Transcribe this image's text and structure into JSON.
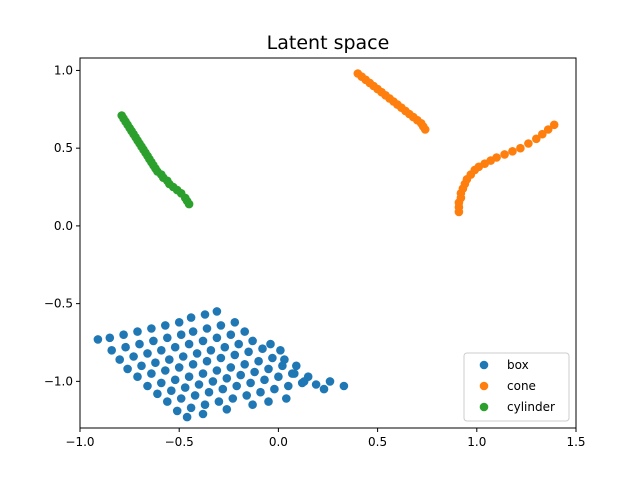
{
  "chart_data": {
    "type": "scatter",
    "title": "Latent space",
    "xlabel": "",
    "ylabel": "",
    "xlim": [
      -1.0,
      1.5
    ],
    "ylim": [
      -1.3,
      1.08
    ],
    "xticks": [
      -1.0,
      -0.5,
      0.0,
      0.5,
      1.0,
      1.5
    ],
    "xtick_labels": [
      "−1.0",
      "−0.5",
      "0.0",
      "0.5",
      "1.0",
      "1.5"
    ],
    "yticks": [
      -1.0,
      -0.5,
      0.0,
      0.5,
      1.0
    ],
    "ytick_labels": [
      "−1.0",
      "−0.5",
      "0.0",
      "0.5",
      "1.0"
    ],
    "grid": false,
    "legend_position": "lower-right",
    "series": [
      {
        "name": "box",
        "color": "#1f77b4",
        "points": [
          [
            -0.91,
            -0.73
          ],
          [
            -0.85,
            -0.72
          ],
          [
            -0.78,
            -0.7
          ],
          [
            -0.71,
            -0.68
          ],
          [
            -0.64,
            -0.66
          ],
          [
            -0.57,
            -0.64
          ],
          [
            -0.5,
            -0.62
          ],
          [
            -0.44,
            -0.59
          ],
          [
            -0.37,
            -0.57
          ],
          [
            -0.31,
            -0.55
          ],
          [
            -0.84,
            -0.8
          ],
          [
            -0.77,
            -0.78
          ],
          [
            -0.7,
            -0.76
          ],
          [
            -0.63,
            -0.74
          ],
          [
            -0.56,
            -0.72
          ],
          [
            -0.49,
            -0.7
          ],
          [
            -0.43,
            -0.68
          ],
          [
            -0.36,
            -0.66
          ],
          [
            -0.29,
            -0.64
          ],
          [
            -0.22,
            -0.62
          ],
          [
            -0.8,
            -0.86
          ],
          [
            -0.73,
            -0.84
          ],
          [
            -0.66,
            -0.82
          ],
          [
            -0.59,
            -0.8
          ],
          [
            -0.52,
            -0.78
          ],
          [
            -0.45,
            -0.76
          ],
          [
            -0.38,
            -0.74
          ],
          [
            -0.31,
            -0.72
          ],
          [
            -0.24,
            -0.7
          ],
          [
            -0.17,
            -0.68
          ],
          [
            -0.76,
            -0.92
          ],
          [
            -0.69,
            -0.9
          ],
          [
            -0.62,
            -0.88
          ],
          [
            -0.55,
            -0.86
          ],
          [
            -0.48,
            -0.84
          ],
          [
            -0.41,
            -0.82
          ],
          [
            -0.34,
            -0.8
          ],
          [
            -0.27,
            -0.78
          ],
          [
            -0.2,
            -0.76
          ],
          [
            -0.13,
            -0.74
          ],
          [
            -0.04,
            -0.76
          ],
          [
            0.01,
            -0.8
          ],
          [
            -0.71,
            -0.97
          ],
          [
            -0.64,
            -0.95
          ],
          [
            -0.57,
            -0.93
          ],
          [
            -0.5,
            -0.91
          ],
          [
            -0.43,
            -0.89
          ],
          [
            -0.36,
            -0.87
          ],
          [
            -0.29,
            -0.85
          ],
          [
            -0.22,
            -0.83
          ],
          [
            -0.15,
            -0.81
          ],
          [
            -0.08,
            -0.79
          ],
          [
            0.03,
            -0.86
          ],
          [
            0.09,
            -0.9
          ],
          [
            -0.66,
            -1.03
          ],
          [
            -0.59,
            -1.01
          ],
          [
            -0.52,
            -0.99
          ],
          [
            -0.45,
            -0.97
          ],
          [
            -0.38,
            -0.95
          ],
          [
            -0.31,
            -0.93
          ],
          [
            -0.24,
            -0.91
          ],
          [
            -0.17,
            -0.89
          ],
          [
            -0.1,
            -0.87
          ],
          [
            -0.03,
            -0.85
          ],
          [
            0.08,
            -0.95
          ],
          [
            0.15,
            -0.97
          ],
          [
            -0.61,
            -1.08
          ],
          [
            -0.54,
            -1.06
          ],
          [
            -0.47,
            -1.04
          ],
          [
            -0.4,
            -1.02
          ],
          [
            -0.33,
            -1.0
          ],
          [
            -0.26,
            -0.98
          ],
          [
            -0.19,
            -0.96
          ],
          [
            -0.12,
            -0.94
          ],
          [
            -0.05,
            -0.92
          ],
          [
            0.02,
            -0.9
          ],
          [
            0.13,
            -1.0
          ],
          [
            0.19,
            -1.02
          ],
          [
            -0.56,
            -1.13
          ],
          [
            -0.49,
            -1.11
          ],
          [
            -0.42,
            -1.09
          ],
          [
            -0.35,
            -1.07
          ],
          [
            -0.28,
            -1.05
          ],
          [
            -0.21,
            -1.03
          ],
          [
            -0.14,
            -1.01
          ],
          [
            -0.07,
            -0.99
          ],
          [
            0.0,
            -0.97
          ],
          [
            0.07,
            -0.95
          ],
          [
            0.23,
            -1.05
          ],
          [
            0.26,
            -1.0
          ],
          [
            0.33,
            -1.03
          ],
          [
            -0.51,
            -1.19
          ],
          [
            -0.44,
            -1.17
          ],
          [
            -0.37,
            -1.15
          ],
          [
            -0.3,
            -1.13
          ],
          [
            -0.23,
            -1.11
          ],
          [
            -0.16,
            -1.09
          ],
          [
            -0.09,
            -1.07
          ],
          [
            -0.02,
            -1.05
          ],
          [
            0.05,
            -1.03
          ],
          [
            0.12,
            -1.01
          ],
          [
            -0.46,
            -1.23
          ],
          [
            -0.38,
            -1.21
          ],
          [
            -0.26,
            -1.18
          ],
          [
            -0.13,
            -1.15
          ],
          [
            -0.05,
            -1.13
          ],
          [
            0.04,
            -1.11
          ]
        ]
      },
      {
        "name": "cone",
        "color": "#ff7f0e",
        "points": [
          [
            0.4,
            0.98
          ],
          [
            0.42,
            0.96
          ],
          [
            0.44,
            0.94
          ],
          [
            0.46,
            0.92
          ],
          [
            0.48,
            0.9
          ],
          [
            0.5,
            0.88
          ],
          [
            0.52,
            0.86
          ],
          [
            0.54,
            0.84
          ],
          [
            0.56,
            0.82
          ],
          [
            0.58,
            0.8
          ],
          [
            0.6,
            0.78
          ],
          [
            0.62,
            0.76
          ],
          [
            0.64,
            0.74
          ],
          [
            0.66,
            0.72
          ],
          [
            0.68,
            0.7
          ],
          [
            0.7,
            0.68
          ],
          [
            0.72,
            0.66
          ],
          [
            0.73,
            0.64
          ],
          [
            0.74,
            0.62
          ],
          [
            0.91,
            0.09
          ],
          [
            0.91,
            0.12
          ],
          [
            0.91,
            0.15
          ],
          [
            0.92,
            0.18
          ],
          [
            0.92,
            0.21
          ],
          [
            0.93,
            0.24
          ],
          [
            0.94,
            0.27
          ],
          [
            0.95,
            0.3
          ],
          [
            0.97,
            0.33
          ],
          [
            0.99,
            0.36
          ],
          [
            1.01,
            0.38
          ],
          [
            1.04,
            0.4
          ],
          [
            1.07,
            0.42
          ],
          [
            1.1,
            0.44
          ],
          [
            1.14,
            0.46
          ],
          [
            1.18,
            0.48
          ],
          [
            1.22,
            0.5
          ],
          [
            1.26,
            0.53
          ],
          [
            1.3,
            0.56
          ],
          [
            1.33,
            0.59
          ],
          [
            1.36,
            0.62
          ],
          [
            1.39,
            0.65
          ]
        ]
      },
      {
        "name": "cylinder",
        "color": "#2ca02c",
        "points": [
          [
            -0.79,
            0.71
          ],
          [
            -0.78,
            0.69
          ],
          [
            -0.77,
            0.67
          ],
          [
            -0.76,
            0.65
          ],
          [
            -0.75,
            0.63
          ],
          [
            -0.74,
            0.61
          ],
          [
            -0.73,
            0.59
          ],
          [
            -0.72,
            0.57
          ],
          [
            -0.71,
            0.55
          ],
          [
            -0.7,
            0.53
          ],
          [
            -0.69,
            0.51
          ],
          [
            -0.68,
            0.49
          ],
          [
            -0.67,
            0.47
          ],
          [
            -0.66,
            0.45
          ],
          [
            -0.65,
            0.43
          ],
          [
            -0.64,
            0.41
          ],
          [
            -0.63,
            0.39
          ],
          [
            -0.62,
            0.37
          ],
          [
            -0.61,
            0.35
          ],
          [
            -0.59,
            0.33
          ],
          [
            -0.58,
            0.31
          ],
          [
            -0.56,
            0.29
          ],
          [
            -0.55,
            0.27
          ],
          [
            -0.53,
            0.25
          ],
          [
            -0.51,
            0.23
          ],
          [
            -0.49,
            0.21
          ],
          [
            -0.47,
            0.18
          ],
          [
            -0.46,
            0.16
          ],
          [
            -0.45,
            0.14
          ]
        ]
      }
    ]
  }
}
